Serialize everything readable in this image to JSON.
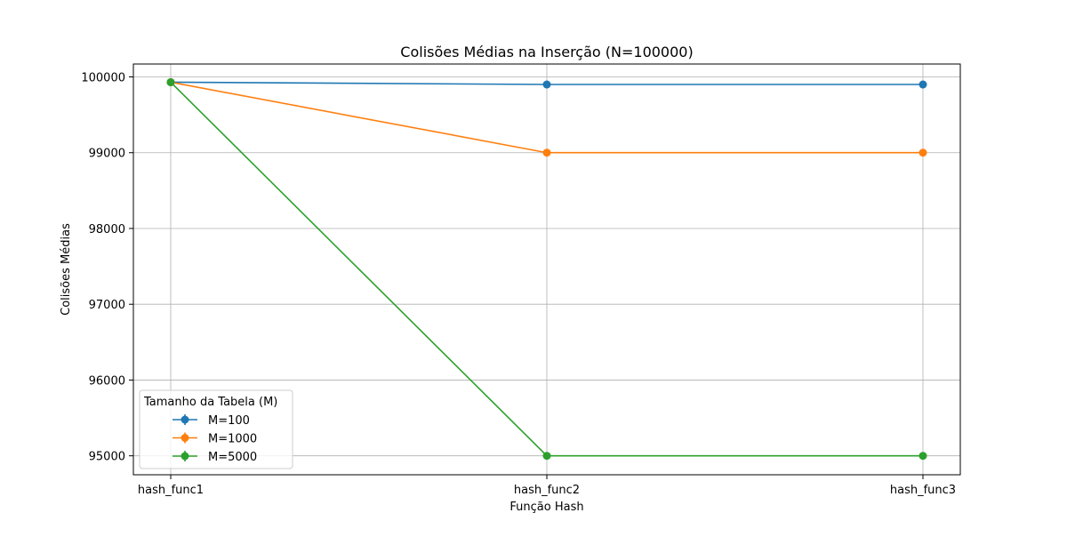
{
  "chart_data": {
    "type": "line",
    "title": "Colisões Médias na Inserção (N=100000)",
    "xlabel": "Função Hash",
    "ylabel": "Colisões Médias",
    "categories": [
      "hash_func1",
      "hash_func2",
      "hash_func3"
    ],
    "ylim": [
      94750,
      100170
    ],
    "yticks": [
      95000,
      96000,
      97000,
      98000,
      99000,
      100000
    ],
    "grid": true,
    "legend": {
      "title": "Tamanho da Tabela (M)",
      "placement": "lower-left"
    },
    "series": [
      {
        "name": "M=100",
        "color": "#1f77b4",
        "values": [
          99930,
          99900,
          99900
        ]
      },
      {
        "name": "M=1000",
        "color": "#ff7f0e",
        "values": [
          99930,
          99000,
          99000
        ]
      },
      {
        "name": "M=5000",
        "color": "#2ca02c",
        "values": [
          99930,
          95000,
          95000
        ]
      }
    ]
  }
}
